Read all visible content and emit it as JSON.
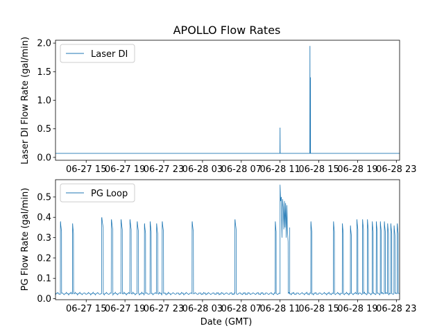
{
  "chart_data": [
    {
      "type": "line",
      "title": "APOLLO Flow Rates",
      "xlabel": "",
      "ylabel": "Laser DI Flow Rate (gal/min)",
      "x_ticks": [
        "06-27 15",
        "06-27 19",
        "06-27 23",
        "06-28 03",
        "06-28 07",
        "06-28 11",
        "06-28 15",
        "06-28 19",
        "06-28 23"
      ],
      "y_ticks": [
        "0.0",
        "0.5",
        "1.0",
        "1.5",
        "2.0"
      ],
      "xlim": [
        "06-27 11:50",
        "06-28 23:20"
      ],
      "ylim": [
        -0.05,
        2.05
      ],
      "legend_placement": "upper left",
      "grid": false,
      "color": "#1f77b4",
      "series": [
        {
          "name": "Laser DI",
          "baseline": 0.07,
          "spikes": [
            {
              "time": "06-28 11:00",
              "value": 0.52
            },
            {
              "time": "06-28 14:05",
              "value": 1.95
            },
            {
              "time": "06-28 14:08",
              "value": 1.4
            }
          ]
        }
      ]
    },
    {
      "type": "line",
      "title": "",
      "xlabel": "Date (GMT)",
      "ylabel": "PG Flow Rate (gal/min)",
      "x_ticks": [
        "06-27 15",
        "06-27 19",
        "06-27 23",
        "06-28 03",
        "06-28 07",
        "06-28 11",
        "06-28 15",
        "06-28 19",
        "06-28 23"
      ],
      "y_ticks": [
        "0.0",
        "0.1",
        "0.2",
        "0.3",
        "0.4",
        "0.5"
      ],
      "xlim": [
        "06-27 11:50",
        "06-28 23:20"
      ],
      "ylim": [
        -0.005,
        0.585
      ],
      "legend_placement": "upper left",
      "grid": false,
      "color": "#1f77b4",
      "series": [
        {
          "name": "PG Loop",
          "baseline": 0.025,
          "pulses": [
            {
              "start": "06-27 12:20",
              "end": "06-27 12:28",
              "peak": 0.38
            },
            {
              "start": "06-27 13:35",
              "end": "06-27 13:42",
              "peak": 0.37
            },
            {
              "start": "06-27 16:35",
              "end": "06-27 16:46",
              "peak": 0.4
            },
            {
              "start": "06-27 17:35",
              "end": "06-27 17:45",
              "peak": 0.39
            },
            {
              "start": "06-27 18:35",
              "end": "06-27 18:44",
              "peak": 0.39
            },
            {
              "start": "06-27 19:30",
              "end": "06-27 19:39",
              "peak": 0.39
            },
            {
              "start": "06-27 20:15",
              "end": "06-27 20:24",
              "peak": 0.38
            },
            {
              "start": "06-27 21:00",
              "end": "06-27 21:08",
              "peak": 0.37
            },
            {
              "start": "06-27 21:35",
              "end": "06-27 21:43",
              "peak": 0.38
            },
            {
              "start": "06-27 22:15",
              "end": "06-27 22:23",
              "peak": 0.37
            },
            {
              "start": "06-27 22:50",
              "end": "06-27 22:59",
              "peak": 0.38
            },
            {
              "start": "06-28 01:55",
              "end": "06-28 02:04",
              "peak": 0.38
            },
            {
              "start": "06-28 06:20",
              "end": "06-28 06:29",
              "peak": 0.39
            },
            {
              "start": "06-28 10:30",
              "end": "06-28 10:36",
              "peak": 0.38
            },
            {
              "start": "06-28 14:10",
              "end": "06-28 14:17",
              "peak": 0.38
            },
            {
              "start": "06-28 16:30",
              "end": "06-28 16:37",
              "peak": 0.38
            },
            {
              "start": "06-28 17:25",
              "end": "06-28 17:32",
              "peak": 0.37
            },
            {
              "start": "06-28 18:15",
              "end": "06-28 18:22",
              "peak": 0.36
            },
            {
              "start": "06-28 18:55",
              "end": "06-28 19:02",
              "peak": 0.39
            },
            {
              "start": "06-28 19:30",
              "end": "06-28 19:37",
              "peak": 0.39
            },
            {
              "start": "06-28 20:00",
              "end": "06-28 20:07",
              "peak": 0.39
            },
            {
              "start": "06-28 20:30",
              "end": "06-28 20:37",
              "peak": 0.38
            },
            {
              "start": "06-28 20:55",
              "end": "06-28 21:02",
              "peak": 0.38
            },
            {
              "start": "06-28 21:20",
              "end": "06-28 21:27",
              "peak": 0.38
            },
            {
              "start": "06-28 21:45",
              "end": "06-28 21:52",
              "peak": 0.38
            },
            {
              "start": "06-28 22:05",
              "end": "06-28 22:12",
              "peak": 0.37
            },
            {
              "start": "06-28 22:25",
              "end": "06-28 22:32",
              "peak": 0.37
            },
            {
              "start": "06-28 22:45",
              "end": "06-28 22:52",
              "peak": 0.36
            },
            {
              "start": "06-28 23:05",
              "end": "06-28 23:12",
              "peak": 0.37
            }
          ],
          "event": {
            "start": "06-28 11:00",
            "end": "06-28 11:50",
            "values": [
              0.56,
              0.48,
              0.5,
              0.3,
              0.49,
              0.45,
              0.34,
              0.48,
              0.35,
              0.47,
              0.3,
              0.46,
              0.33,
              0.28
            ],
            "after_spike": {
              "time": "06-28 12:00",
              "value": 0.35
            }
          }
        }
      ]
    }
  ]
}
